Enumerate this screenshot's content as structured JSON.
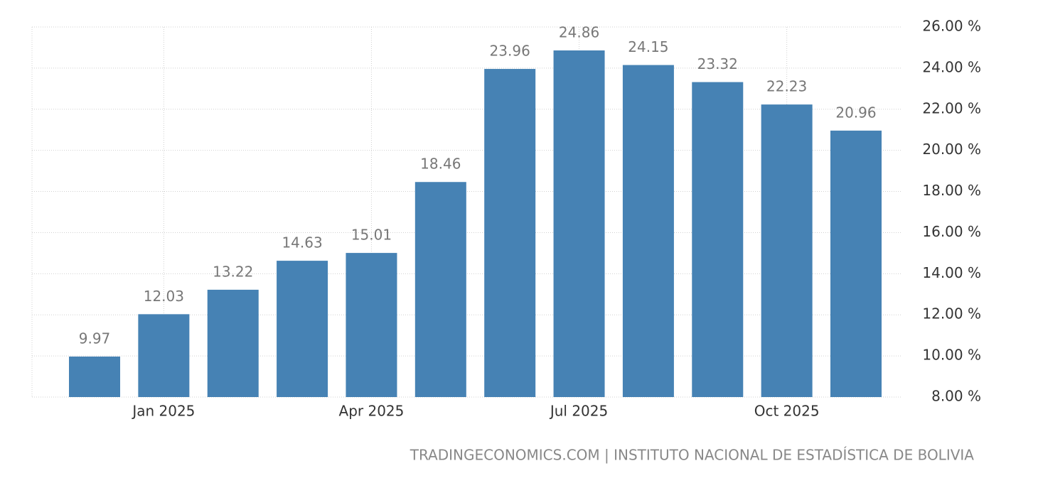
{
  "chart_data": {
    "type": "bar",
    "categories": [
      null,
      "Jan 2025",
      null,
      null,
      "Apr 2025",
      null,
      null,
      "Jul 2025",
      null,
      null,
      "Oct 2025",
      null
    ],
    "values": [
      9.97,
      12.03,
      13.22,
      14.63,
      15.01,
      18.46,
      23.96,
      24.86,
      24.15,
      23.32,
      22.23,
      20.96
    ],
    "color": "#4682b4",
    "ylim": [
      8,
      26
    ],
    "yticks": [
      {
        "value": 8,
        "label": "8.00 %"
      },
      {
        "value": 10,
        "label": "10.00 %"
      },
      {
        "value": 12,
        "label": "12.00 %"
      },
      {
        "value": 14,
        "label": "14.00 %"
      },
      {
        "value": 16,
        "label": "16.00 %"
      },
      {
        "value": 18,
        "label": "18.00 %"
      },
      {
        "value": 20,
        "label": "20.00 %"
      },
      {
        "value": 22,
        "label": "22.00 %"
      },
      {
        "value": 24,
        "label": "24.00 %"
      },
      {
        "value": 26,
        "label": "26.00 %"
      }
    ],
    "grid": true,
    "y_axis_side": "right",
    "source": "TRADINGECONOMICS.COM | INSTITUTO NACIONAL DE ESTADÍSTICA DE BOLIVIA"
  }
}
